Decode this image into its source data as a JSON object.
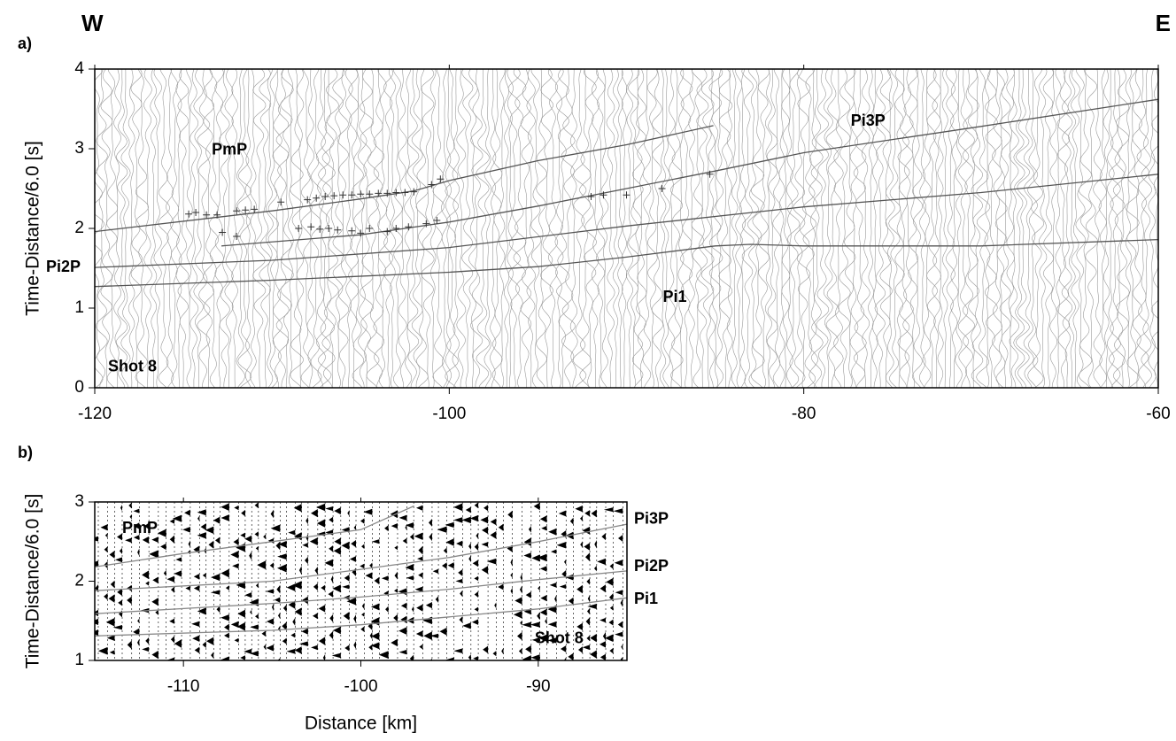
{
  "chart_data": [
    {
      "type": "line",
      "panel_label": "a)",
      "left_label": "W",
      "right_label": "E",
      "ylabel": "Time-Distance/6.0 [s]",
      "xlim": [
        -120,
        -60
      ],
      "ylim": [
        0,
        4
      ],
      "xticks": [
        -120,
        -100,
        -80,
        -60
      ],
      "yticks": [
        0,
        1,
        2,
        3,
        4
      ],
      "series": [
        {
          "color": "#555555",
          "x": [
            -120,
            -110,
            -105,
            -102,
            -100,
            -95,
            -90,
            -85.1
          ],
          "values": [
            1.96,
            2.22,
            2.37,
            2.47,
            2.6,
            2.85,
            3.05,
            3.29
          ]
        },
        {
          "color": "#555555",
          "x": [
            -112.85,
            -105,
            -100,
            -95,
            -90,
            -85,
            -80,
            -70,
            -60
          ],
          "values": [
            1.78,
            1.92,
            2.08,
            2.28,
            2.5,
            2.72,
            2.95,
            3.28,
            3.62
          ]
        },
        {
          "color": "#555555",
          "x": [
            -120,
            -110,
            -100,
            -90,
            -80,
            -70,
            -60
          ],
          "values": [
            1.51,
            1.6,
            1.76,
            2.03,
            2.27,
            2.45,
            2.68
          ]
        },
        {
          "color": "#555555",
          "x": [
            -120,
            -110,
            -100,
            -95,
            -90,
            -85,
            -83,
            -80,
            -70,
            -60
          ],
          "values": [
            1.27,
            1.35,
            1.45,
            1.52,
            1.64,
            1.78,
            1.8,
            1.78,
            1.78,
            1.86
          ]
        }
      ],
      "picks": [
        {
          "color": "#333333",
          "x": [
            -114.7,
            -114.3,
            -113.7,
            -113.1,
            -112,
            -111.5,
            -111,
            -109.5,
            -108,
            -107.5,
            -107,
            -106.5,
            -106,
            -105.5,
            -105,
            -104.5,
            -104,
            -103.5,
            -103,
            -102.5,
            -102,
            -101,
            -100.5
          ],
          "values": [
            2.18,
            2.2,
            2.17,
            2.17,
            2.22,
            2.23,
            2.24,
            2.33,
            2.36,
            2.38,
            2.4,
            2.41,
            2.42,
            2.42,
            2.43,
            2.43,
            2.44,
            2.44,
            2.45,
            2.45,
            2.46,
            2.55,
            2.62
          ]
        },
        {
          "color": "#333333",
          "x": [
            -112.8,
            -112,
            -108.5,
            -107.8,
            -107.3,
            -106.8,
            -106.3,
            -105.5,
            -105,
            -104.5,
            -103.5,
            -103,
            -102.3,
            -101.3,
            -100.7,
            -92,
            -91.3,
            -90,
            -88,
            -85.3
          ],
          "values": [
            1.95,
            1.9,
            2.0,
            2.02,
            1.99,
            2.0,
            1.98,
            1.97,
            1.94,
            2.0,
            1.96,
            2.0,
            2.02,
            2.06,
            2.1,
            2.4,
            2.42,
            2.42,
            2.5,
            2.68
          ]
        }
      ],
      "annotations": [
        {
          "text": "PmP",
          "x": -113.4,
          "y": 2.98
        },
        {
          "text": "Pi3P",
          "x": -77.35,
          "y": 3.34
        },
        {
          "text": "Pi2P",
          "x": -122.75,
          "y": 1.51
        },
        {
          "text": "Pi1",
          "x": -87.95,
          "y": 1.13
        },
        {
          "text": "Shot 8",
          "x": -119.25,
          "y": 0.26
        }
      ]
    },
    {
      "type": "line",
      "panel_label": "b)",
      "ylabel": "Time-Distance/6.0 [s]",
      "xlabel": "Distance [km]",
      "xlim": [
        -115,
        -85
      ],
      "ylim": [
        1,
        3
      ],
      "xticks": [
        -110,
        -100,
        -90
      ],
      "yticks": [
        1,
        2,
        3
      ],
      "series": [
        {
          "color": "#888888",
          "x": [
            -115,
            -110,
            -105,
            -100,
            -97
          ],
          "values": [
            2.18,
            2.35,
            2.5,
            2.65,
            2.95
          ]
        },
        {
          "color": "#888888",
          "x": [
            -115,
            -105,
            -100,
            -95,
            -90,
            -85
          ],
          "values": [
            1.88,
            2.0,
            2.15,
            2.3,
            2.5,
            2.72
          ]
        },
        {
          "color": "#888888",
          "x": [
            -115,
            -105,
            -100,
            -95,
            -90,
            -85
          ],
          "values": [
            1.59,
            1.72,
            1.8,
            1.9,
            2.02,
            2.13
          ]
        },
        {
          "color": "#888888",
          "x": [
            -115,
            -105,
            -100,
            -95,
            -90,
            -85
          ],
          "values": [
            1.31,
            1.38,
            1.45,
            1.55,
            1.65,
            1.79
          ]
        }
      ],
      "annotations": [
        {
          "text": "PmP",
          "x": -113.45,
          "y": 2.66
        },
        {
          "text": "Pi3P",
          "x": -84.6,
          "y": 2.78
        },
        {
          "text": "Pi2P",
          "x": -84.6,
          "y": 2.18
        },
        {
          "text": "Pi1",
          "x": -84.6,
          "y": 1.77
        },
        {
          "text": "Shot 8",
          "x": -90.2,
          "y": 1.27
        }
      ]
    }
  ]
}
